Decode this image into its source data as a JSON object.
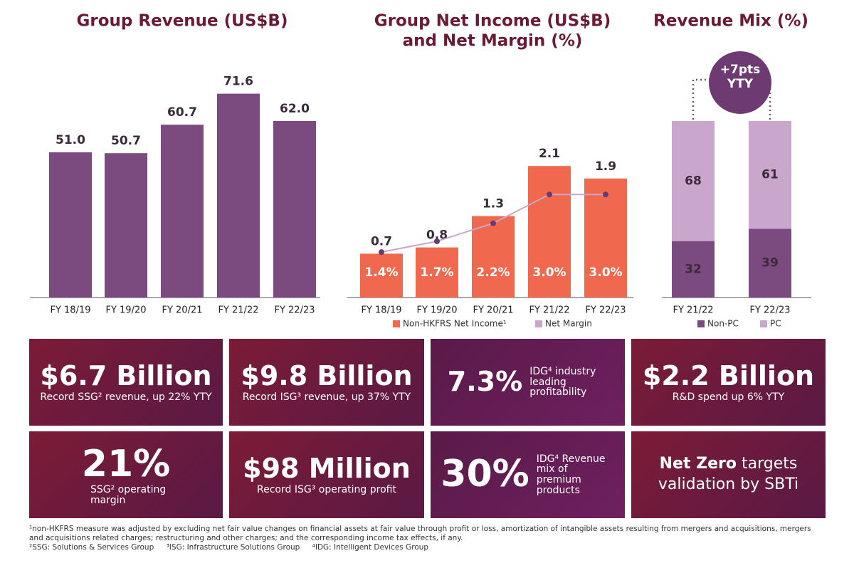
{
  "chart_data": [
    {
      "type": "bar",
      "title": "Group Revenue (US$B)",
      "categories": [
        "FY 18/19",
        "FY 19/20",
        "FY 20/21",
        "FY 21/22",
        "FY 22/23"
      ],
      "values": [
        51.0,
        50.7,
        60.7,
        71.6,
        62.0
      ],
      "value_labels": [
        "51.0",
        "50.7",
        "60.7",
        "71.6",
        "62.0"
      ],
      "color": "#7b4a7f"
    },
    {
      "type": "bar_line",
      "title": [
        "Group Net Income (US$B)",
        "and Net Margin (%)"
      ],
      "categories": [
        "FY 18/19",
        "FY 19/20",
        "FY 20/21",
        "FY 21/22",
        "FY 22/23"
      ],
      "series": [
        {
          "name": "Non-HKFRS Net Income¹",
          "color": "#f0694f",
          "values": [
            0.7,
            0.8,
            1.3,
            2.1,
            1.9
          ]
        },
        {
          "name": "Net Margin",
          "color": "#c9a6cc",
          "axis": "y2",
          "values": [
            1.4,
            1.7,
            2.2,
            3.0,
            3.0
          ],
          "value_labels": [
            "1.4%",
            "1.7%",
            "2.2%",
            "3.0%",
            "3.0%"
          ]
        }
      ]
    },
    {
      "type": "stacked_bar",
      "title": "Revenue Mix (%)",
      "categories": [
        "FY 21/22",
        "FY 22/23"
      ],
      "series": [
        {
          "name": "Non-PC",
          "color": "#7b4a7f",
          "values": [
            32,
            39
          ]
        },
        {
          "name": "PC",
          "color": "#c9a6cc",
          "values": [
            68,
            61
          ]
        }
      ],
      "annotation": "+7pts YTY"
    }
  ],
  "tiles": [
    {
      "main": "$6.7 Billion",
      "sub": "Record SSG² revenue, up 22% YTY"
    },
    {
      "main": "$9.8 Billion",
      "sub": "Record ISG³ revenue, up 37% YTY"
    },
    {
      "main": "7.3%",
      "side": "IDG⁴ industry leading profitability"
    },
    {
      "main": "$2.2 Billion",
      "sub": "R&D spend up 6% YTY"
    },
    {
      "main": "21%",
      "side": "SSG² operating margin"
    },
    {
      "main": "$98 Million",
      "sub": "Record ISG³ operating profit"
    },
    {
      "main": "30%",
      "side": "IDG⁴ Revenue mix of premium products"
    },
    {
      "bold": "Net Zero",
      "text": "targets validation by SBTi"
    }
  ],
  "footnotes": {
    "note1": "¹non-HKFRS measure was adjusted by excluding net fair value changes on financial assets at fair value through profit or loss, amortization of intangible assets resulting from mergers and acquisitions, mergers and acquisitions related charges; restructuring and other charges; and the corresponding income tax effects, if any.",
    "abbreviations": [
      "²SSG: Solutions & Services Group",
      "³ISG: Infrastructure Solutions Group",
      "⁴IDG: Intelligent Devices Group"
    ]
  }
}
